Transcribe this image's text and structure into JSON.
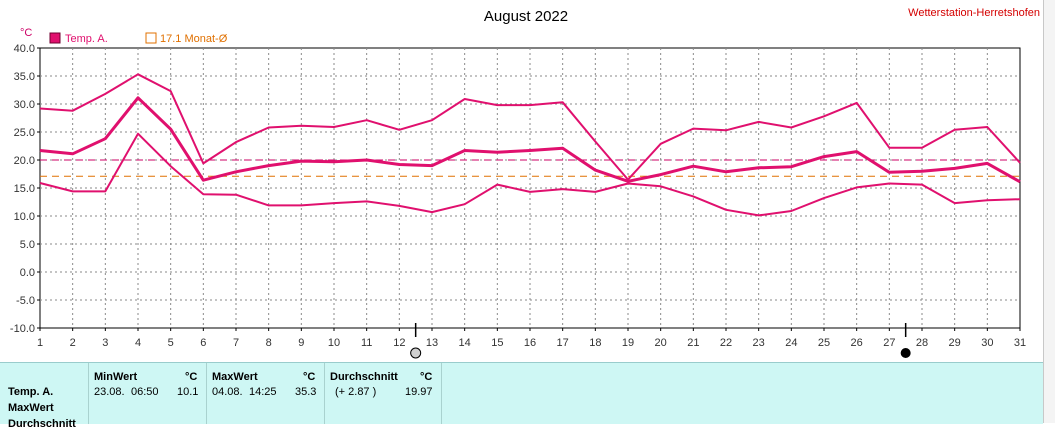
{
  "station": "Wetterstation-Herretshofen",
  "chart_data": {
    "type": "line",
    "title": "August 2022",
    "ylabel": "°C",
    "ylim": [
      -10,
      40
    ],
    "yticks": [
      "40.0",
      "35.0",
      "30.0",
      "25.0",
      "20.0",
      "15.0",
      "10.0",
      "5.0",
      "0.0",
      "-5.0",
      "-10.0"
    ],
    "x": [
      1,
      2,
      3,
      4,
      5,
      6,
      7,
      8,
      9,
      10,
      11,
      12,
      13,
      14,
      15,
      16,
      17,
      18,
      19,
      20,
      21,
      22,
      23,
      24,
      25,
      26,
      27,
      28,
      29,
      30,
      31
    ],
    "grid": true,
    "legend": [
      {
        "label": "Temp. A.",
        "color": "#e0106e"
      },
      {
        "label": "17.1 Monat-Ø",
        "color": "#e07000"
      }
    ],
    "series": [
      {
        "name": "Temp. A.",
        "role": "max",
        "values": [
          29.2,
          28.8,
          31.8,
          35.3,
          32.3,
          19.4,
          23.2,
          25.8,
          26.1,
          25.9,
          27.1,
          25.4,
          27.1,
          30.9,
          29.8,
          29.8,
          30.3,
          23.3,
          16.5,
          22.9,
          25.6,
          25.3,
          26.8,
          25.8,
          27.8,
          30.2,
          22.2,
          22.2,
          25.4,
          25.9,
          19.5
        ]
      },
      {
        "name": "Temp. A.",
        "role": "mean",
        "values": [
          21.7,
          21.1,
          23.8,
          31.1,
          25.5,
          16.4,
          17.9,
          19.0,
          19.8,
          19.7,
          20.0,
          19.2,
          19.0,
          21.7,
          21.4,
          21.7,
          22.1,
          18.2,
          16.2,
          17.4,
          18.9,
          17.9,
          18.6,
          18.8,
          20.6,
          21.5,
          17.8,
          18.0,
          18.5,
          19.4,
          16.1
        ]
      },
      {
        "name": "Temp. A.",
        "role": "min",
        "values": [
          15.9,
          14.4,
          14.4,
          24.7,
          18.9,
          13.9,
          13.8,
          11.9,
          11.9,
          12.3,
          12.6,
          11.8,
          10.7,
          12.1,
          15.6,
          14.3,
          14.8,
          14.3,
          15.8,
          15.3,
          13.5,
          11.1,
          10.1,
          10.9,
          13.2,
          15.1,
          15.8,
          15.6,
          12.3,
          12.8,
          13.0
        ]
      }
    ],
    "reference_lines": [
      {
        "label": "17.1 Monat-Ø",
        "value": 17.1,
        "color": "#e07000"
      },
      {
        "value": 20.0,
        "color": "#cc0066"
      }
    ],
    "moon_markers": [
      {
        "day": 12,
        "phase": "full"
      },
      {
        "day": 27,
        "phase": "new"
      }
    ]
  },
  "stats": {
    "row_labels": [
      "Temp. A.",
      "MaxWert",
      "Durchschnitt"
    ],
    "min": {
      "header": "MinWert",
      "unit": "°C",
      "date": "23.08.",
      "time": "06:50",
      "value": "10.1"
    },
    "max": {
      "header": "MaxWert",
      "unit": "°C",
      "date": "04.08.",
      "time": "14:25",
      "value": "35.3"
    },
    "avg": {
      "header": "Durchschnitt",
      "unit": "°C",
      "delta": "(+ 2.87 )",
      "value": "19.97"
    }
  }
}
